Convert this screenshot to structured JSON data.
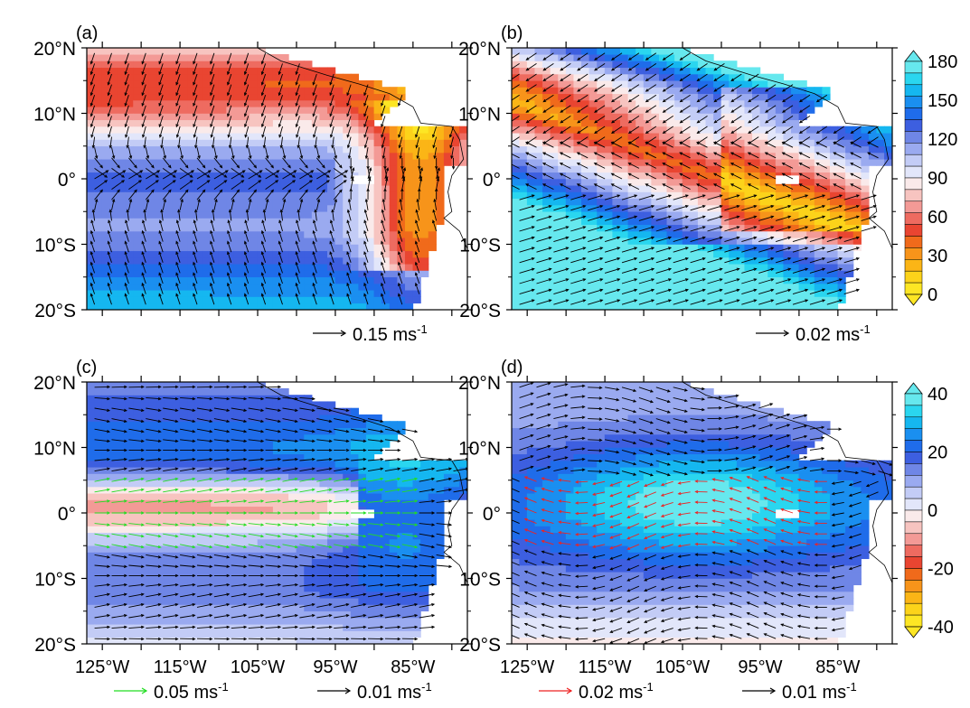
{
  "chart_data": [
    {
      "type": "heatmap",
      "panel": "(a)",
      "x_ticks": [
        "125°W",
        "115°W",
        "105°W",
        "95°W",
        "85°W"
      ],
      "y_ticks": [
        "20°N",
        "10°N",
        "0°",
        "10°S",
        "20°S"
      ],
      "xlim": [
        -127,
        -78
      ],
      "ylim": [
        -20,
        20
      ],
      "field_range": [
        0,
        180
      ],
      "vector_reference": [
        {
          "label": "0.15 ms",
          "exp": "-1",
          "color": "#000000"
        }
      ]
    },
    {
      "type": "heatmap",
      "panel": "(b)",
      "x_ticks": [
        "125°W",
        "115°W",
        "105°W",
        "95°W",
        "85°W"
      ],
      "y_ticks": [
        "20°N",
        "10°N",
        "0°",
        "10°S",
        "20°S"
      ],
      "xlim": [
        -127,
        -78
      ],
      "ylim": [
        -20,
        20
      ],
      "field_range": [
        0,
        180
      ],
      "vector_reference": [
        {
          "label": "0.02 ms",
          "exp": "-1",
          "color": "#000000"
        }
      ]
    },
    {
      "type": "heatmap",
      "panel": "(c)",
      "x_ticks": [
        "125°W",
        "115°W",
        "105°W",
        "95°W",
        "85°W"
      ],
      "y_ticks": [
        "20°N",
        "10°N",
        "0°",
        "10°S",
        "20°S"
      ],
      "xlim": [
        -127,
        -78
      ],
      "ylim": [
        -20,
        20
      ],
      "field_range": [
        -40,
        40
      ],
      "vector_reference": [
        {
          "label": "0.05 ms",
          "exp": "-1",
          "color": "#22dd22"
        },
        {
          "label": "0.01 ms",
          "exp": "-1",
          "color": "#000000"
        }
      ]
    },
    {
      "type": "heatmap",
      "panel": "(d)",
      "x_ticks": [
        "125°W",
        "115°W",
        "105°W",
        "95°W",
        "85°W"
      ],
      "y_ticks": [
        "20°N",
        "10°N",
        "0°",
        "10°S",
        "20°S"
      ],
      "xlim": [
        -127,
        -78
      ],
      "ylim": [
        -20,
        20
      ],
      "field_range": [
        -40,
        40
      ],
      "vector_reference": [
        {
          "label": "0.02 ms",
          "exp": "-1",
          "color": "#ee2222"
        },
        {
          "label": "0.01 ms",
          "exp": "-1",
          "color": "#000000"
        }
      ]
    }
  ],
  "colorbars": [
    {
      "labels": [
        "180",
        "150",
        "120",
        "90",
        "60",
        "30",
        "0"
      ],
      "colors": [
        "#66e8ee",
        "#2ad6ef",
        "#15b7f0",
        "#1a8ff0",
        "#1f6cea",
        "#3d5fe0",
        "#6f86e6",
        "#9aaaf0",
        "#c3ccf6",
        "#e2e6fa",
        "#faeaea",
        "#f7c4c0",
        "#f39a96",
        "#ee6b60",
        "#e94531",
        "#f06a1b",
        "#f7941a",
        "#fbb516",
        "#fcd31a",
        "#fde624"
      ]
    },
    {
      "labels": [
        "40",
        "20",
        "0",
        "-20",
        "-40"
      ],
      "colors": [
        "#66e8ee",
        "#2ad6ef",
        "#15b7f0",
        "#1a8ff0",
        "#1f6cea",
        "#3d5fe0",
        "#6f86e6",
        "#9aaaf0",
        "#c3ccf6",
        "#e2e6fa",
        "#faeaea",
        "#f7c4c0",
        "#f39a96",
        "#ee6b60",
        "#e94531",
        "#f06a1b",
        "#f7941a",
        "#fbb516",
        "#fcd31a",
        "#fde624"
      ]
    }
  ]
}
